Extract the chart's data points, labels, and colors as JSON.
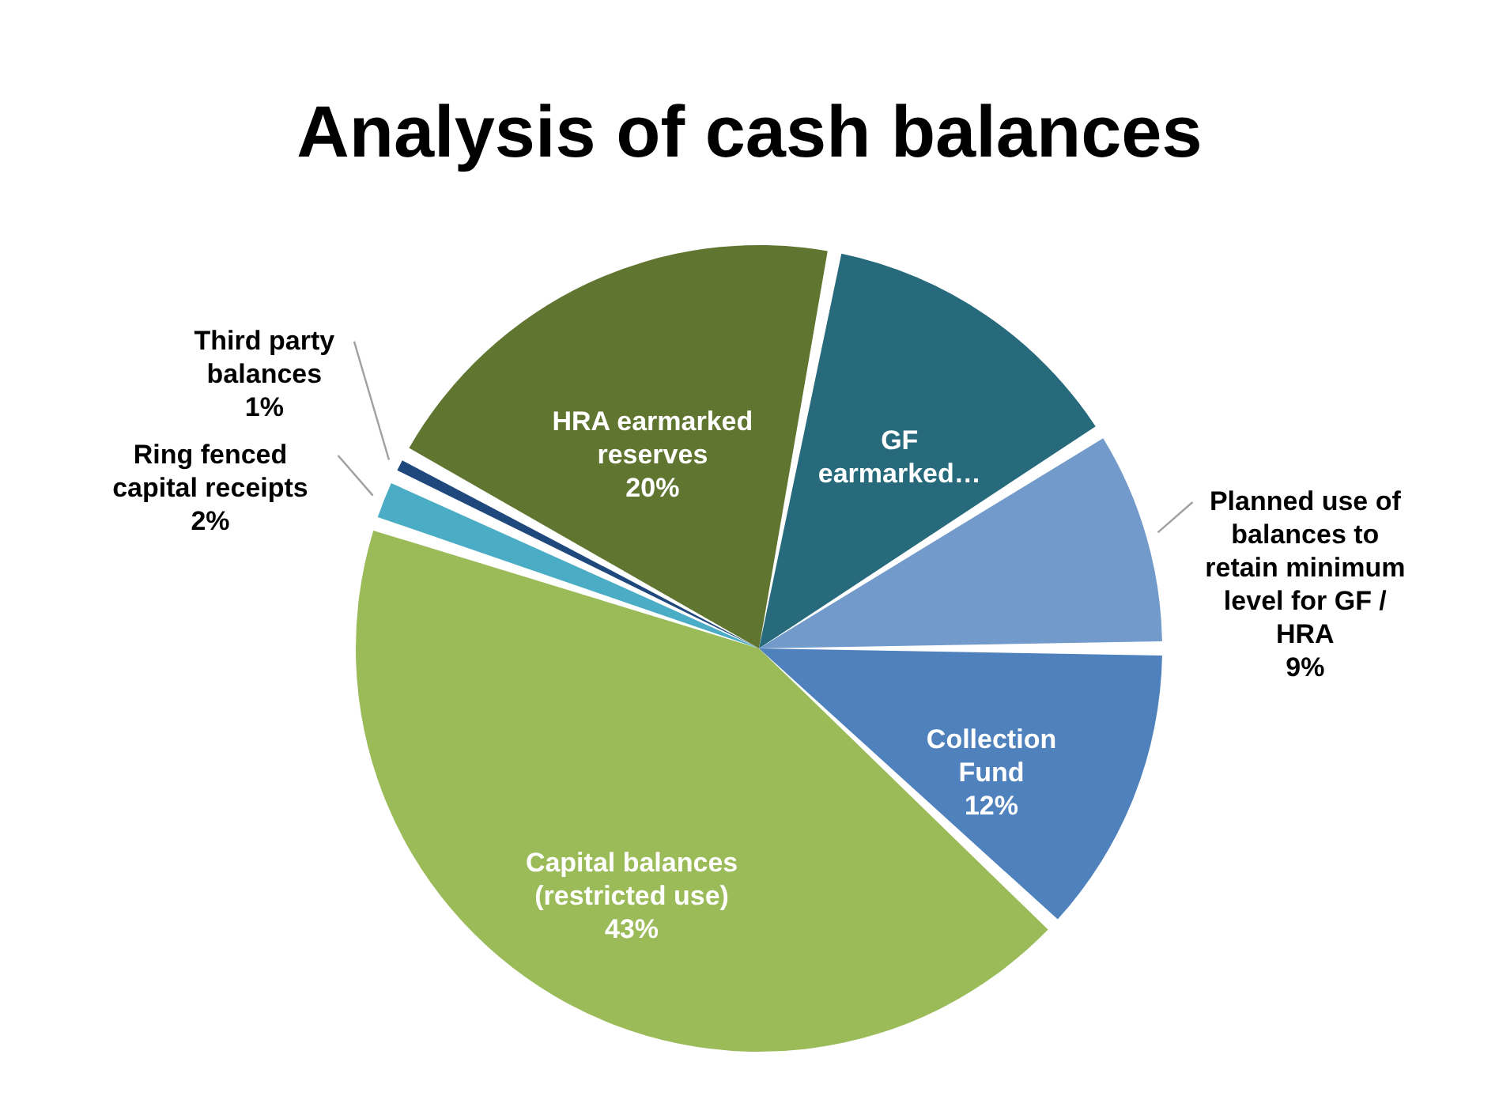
{
  "chart_data": {
    "type": "pie",
    "title": "Analysis of cash balances",
    "categories": [
      "Collection Fund",
      "Capital balances (restricted use)",
      "Ring fenced capital receipts",
      "Third party balances",
      "HRA earmarked reserves",
      "GF earmarked…",
      "Planned use of balances to retain minimum level for GF / HRA"
    ],
    "values": [
      12,
      43,
      2,
      1,
      20,
      13,
      9
    ],
    "value_labels": [
      "12%",
      "43%",
      "2%",
      "1%",
      "20%",
      null,
      "9%"
    ],
    "colors": [
      "#4f81bd",
      "#9bbb59",
      "#4bacc6",
      "#1f497d",
      "#5f7530",
      "#276a7c",
      "#729aca"
    ]
  }
}
